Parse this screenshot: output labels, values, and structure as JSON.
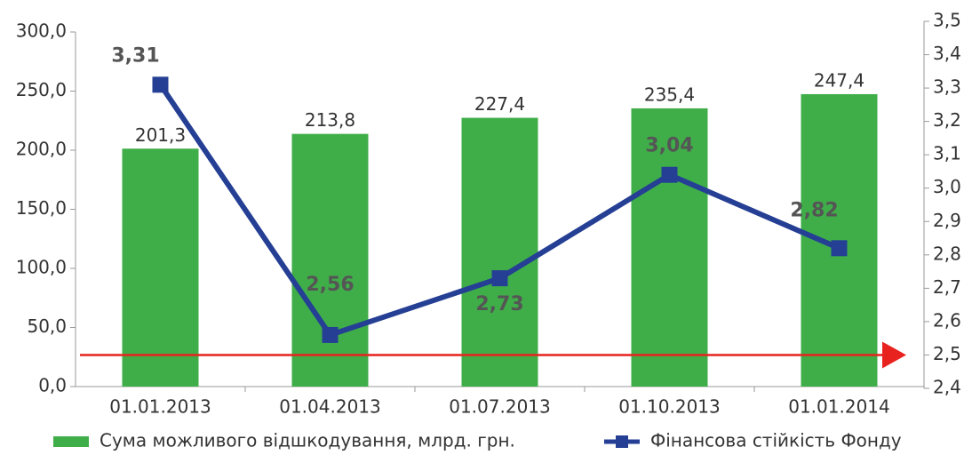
{
  "chart_data": {
    "type": "bar_line",
    "categories": [
      "01.01.2013",
      "01.04.2013",
      "01.07.2013",
      "01.10.2013",
      "01.01.2014"
    ],
    "series": [
      {
        "name": "Сума можливого відшкодування, млрд. грн.",
        "type": "bar",
        "color": "#3fae49",
        "axis": "y",
        "values": [
          201.3,
          213.8,
          227.4,
          235.4,
          247.4
        ],
        "value_labels": [
          "201,3",
          "213,8",
          "227,4",
          "235,4",
          "247,4"
        ]
      },
      {
        "name": "Фінансова стійкість Фонду",
        "type": "line",
        "color": "#253f94",
        "axis": "y2",
        "values": [
          3.31,
          2.56,
          2.73,
          3.04,
          2.82
        ],
        "value_labels": [
          "3,31",
          "2,56",
          "2,73",
          "3,04",
          "2,82"
        ]
      }
    ],
    "ylim": [
      0,
      300
    ],
    "yticks": [
      {
        "value": 0,
        "label": "0,0"
      },
      {
        "value": 50,
        "label": "50,0"
      },
      {
        "value": 100,
        "label": "100,0"
      },
      {
        "value": 150,
        "label": "150,0"
      },
      {
        "value": 200,
        "label": "200,0"
      },
      {
        "value": 250,
        "label": "250,0"
      },
      {
        "value": 300,
        "label": "300,0"
      }
    ],
    "y2lim": [
      2.4,
      3.5
    ],
    "y2ticks": [
      {
        "value": 2.4,
        "label": "2,4"
      },
      {
        "value": 2.5,
        "label": "2,5"
      },
      {
        "value": 2.6,
        "label": "2,6"
      },
      {
        "value": 2.7,
        "label": "2,7"
      },
      {
        "value": 2.8,
        "label": "2,8"
      },
      {
        "value": 2.9,
        "label": "2,9"
      },
      {
        "value": 3.0,
        "label": "3,0"
      },
      {
        "value": 3.1,
        "label": "3,1"
      },
      {
        "value": 3.2,
        "label": "3,2"
      },
      {
        "value": 3.3,
        "label": "3,3"
      },
      {
        "value": 3.4,
        "label": "3,4"
      },
      {
        "value": 3.5,
        "label": "3,5"
      }
    ],
    "reference_line": {
      "value": 2.5,
      "axis": "y2",
      "color": "#e8221e"
    },
    "legend": "bottom"
  }
}
